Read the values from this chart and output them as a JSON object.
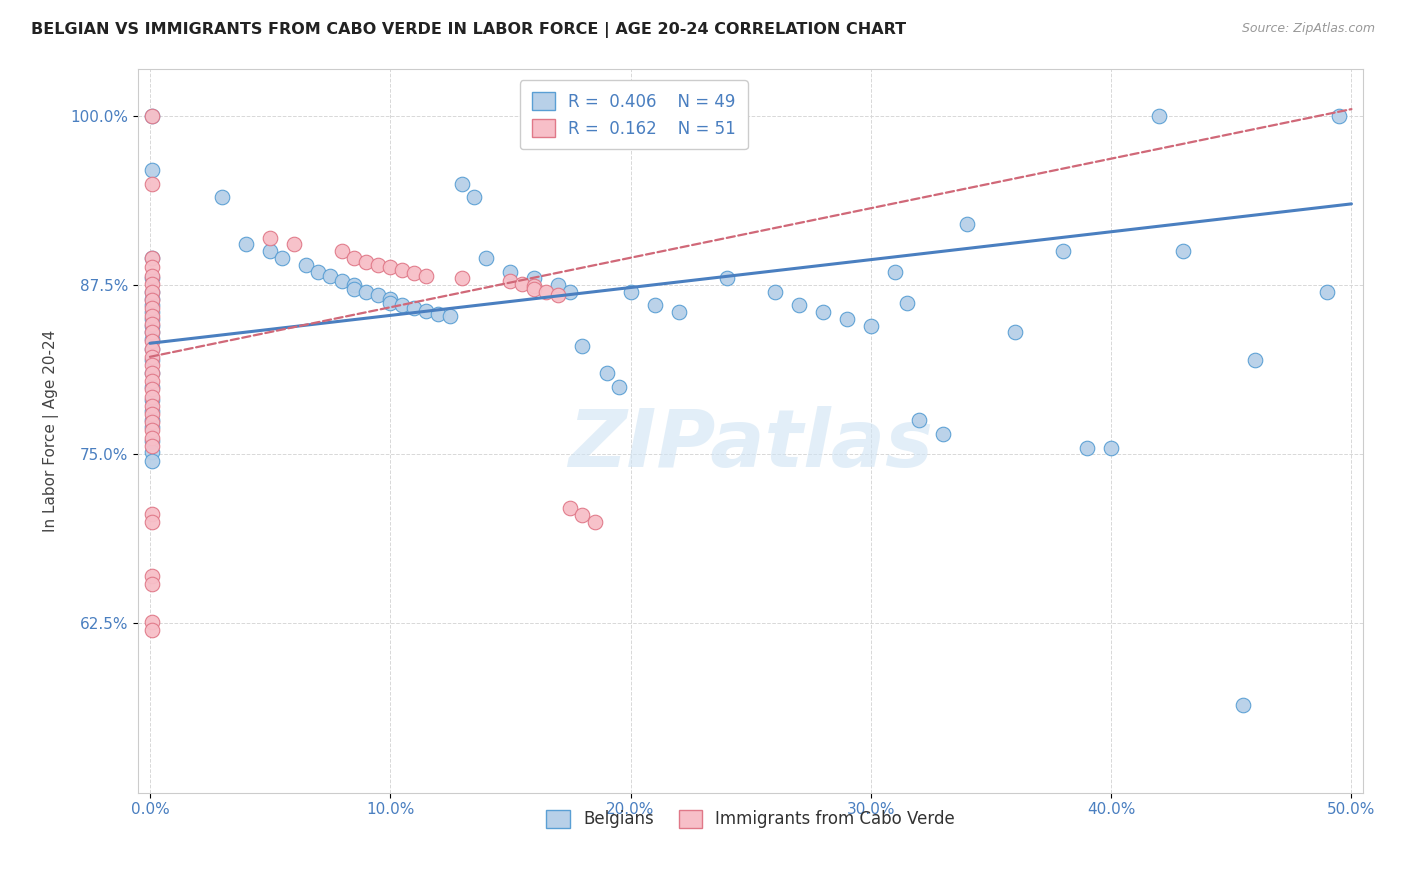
{
  "title": "BELGIAN VS IMMIGRANTS FROM CABO VERDE IN LABOR FORCE | AGE 20-24 CORRELATION CHART",
  "source": "Source: ZipAtlas.com",
  "ylabel": "In Labor Force | Age 20-24",
  "xlim": [
    -0.005,
    0.505
  ],
  "ylim": [
    0.5,
    1.035
  ],
  "yticks": [
    0.625,
    0.75,
    0.875,
    1.0
  ],
  "ytick_labels": [
    "62.5%",
    "75.0%",
    "87.5%",
    "100.0%"
  ],
  "xticks": [
    0.0,
    0.1,
    0.2,
    0.3,
    0.4,
    0.5
  ],
  "xtick_labels": [
    "0.0%",
    "10.0%",
    "20.0%",
    "30.0%",
    "40.0%",
    "50.0%"
  ],
  "blue_color": "#b8d0e8",
  "blue_edge": "#5a9fd4",
  "pink_color": "#f7bfc8",
  "pink_edge": "#e07888",
  "line_blue": "#4a7fc0",
  "line_pink": "#d06878",
  "watermark": "ZIPatlas",
  "blue_scatter": [
    [
      0.001,
      1.0
    ],
    [
      0.001,
      0.96
    ],
    [
      0.001,
      0.895
    ],
    [
      0.001,
      0.88
    ],
    [
      0.001,
      0.87
    ],
    [
      0.001,
      0.865
    ],
    [
      0.001,
      0.86
    ],
    [
      0.001,
      0.855
    ],
    [
      0.001,
      0.85
    ],
    [
      0.001,
      0.845
    ],
    [
      0.001,
      0.84
    ],
    [
      0.001,
      0.835
    ],
    [
      0.001,
      0.828
    ],
    [
      0.001,
      0.82
    ],
    [
      0.001,
      0.81
    ],
    [
      0.001,
      0.8
    ],
    [
      0.001,
      0.79
    ],
    [
      0.001,
      0.782
    ],
    [
      0.001,
      0.775
    ],
    [
      0.001,
      0.77
    ],
    [
      0.001,
      0.76
    ],
    [
      0.001,
      0.752
    ],
    [
      0.001,
      0.745
    ],
    [
      0.03,
      0.94
    ],
    [
      0.04,
      0.905
    ],
    [
      0.05,
      0.9
    ],
    [
      0.055,
      0.895
    ],
    [
      0.065,
      0.89
    ],
    [
      0.07,
      0.885
    ],
    [
      0.075,
      0.882
    ],
    [
      0.08,
      0.878
    ],
    [
      0.085,
      0.875
    ],
    [
      0.085,
      0.872
    ],
    [
      0.09,
      0.87
    ],
    [
      0.095,
      0.868
    ],
    [
      0.1,
      0.865
    ],
    [
      0.1,
      0.862
    ],
    [
      0.105,
      0.86
    ],
    [
      0.11,
      0.858
    ],
    [
      0.115,
      0.856
    ],
    [
      0.12,
      0.854
    ],
    [
      0.125,
      0.852
    ],
    [
      0.13,
      0.95
    ],
    [
      0.135,
      0.94
    ],
    [
      0.14,
      0.895
    ],
    [
      0.15,
      0.885
    ],
    [
      0.16,
      0.88
    ],
    [
      0.17,
      0.875
    ],
    [
      0.175,
      0.87
    ],
    [
      0.18,
      0.83
    ],
    [
      0.19,
      0.81
    ],
    [
      0.195,
      0.8
    ],
    [
      0.2,
      0.87
    ],
    [
      0.21,
      0.86
    ],
    [
      0.22,
      0.855
    ],
    [
      0.24,
      0.88
    ],
    [
      0.26,
      0.87
    ],
    [
      0.27,
      0.86
    ],
    [
      0.28,
      0.855
    ],
    [
      0.29,
      0.85
    ],
    [
      0.3,
      0.845
    ],
    [
      0.31,
      0.885
    ],
    [
      0.315,
      0.862
    ],
    [
      0.32,
      0.775
    ],
    [
      0.33,
      0.765
    ],
    [
      0.34,
      0.92
    ],
    [
      0.36,
      0.84
    ],
    [
      0.38,
      0.9
    ],
    [
      0.39,
      0.755
    ],
    [
      0.4,
      0.755
    ],
    [
      0.42,
      1.0
    ],
    [
      0.43,
      0.9
    ],
    [
      0.455,
      0.565
    ],
    [
      0.46,
      0.82
    ],
    [
      0.49,
      0.87
    ],
    [
      0.495,
      1.0
    ]
  ],
  "pink_scatter": [
    [
      0.001,
      1.0
    ],
    [
      0.001,
      0.95
    ],
    [
      0.001,
      0.895
    ],
    [
      0.001,
      0.888
    ],
    [
      0.001,
      0.882
    ],
    [
      0.001,
      0.876
    ],
    [
      0.001,
      0.87
    ],
    [
      0.001,
      0.864
    ],
    [
      0.001,
      0.858
    ],
    [
      0.001,
      0.852
    ],
    [
      0.001,
      0.846
    ],
    [
      0.001,
      0.84
    ],
    [
      0.001,
      0.834
    ],
    [
      0.001,
      0.828
    ],
    [
      0.001,
      0.822
    ],
    [
      0.001,
      0.816
    ],
    [
      0.001,
      0.81
    ],
    [
      0.001,
      0.804
    ],
    [
      0.001,
      0.798
    ],
    [
      0.001,
      0.792
    ],
    [
      0.001,
      0.786
    ],
    [
      0.001,
      0.78
    ],
    [
      0.001,
      0.774
    ],
    [
      0.001,
      0.768
    ],
    [
      0.001,
      0.762
    ],
    [
      0.001,
      0.756
    ],
    [
      0.001,
      0.706
    ],
    [
      0.001,
      0.7
    ],
    [
      0.001,
      0.66
    ],
    [
      0.001,
      0.654
    ],
    [
      0.001,
      0.626
    ],
    [
      0.001,
      0.62
    ],
    [
      0.05,
      0.91
    ],
    [
      0.06,
      0.905
    ],
    [
      0.08,
      0.9
    ],
    [
      0.085,
      0.895
    ],
    [
      0.09,
      0.892
    ],
    [
      0.095,
      0.89
    ],
    [
      0.1,
      0.888
    ],
    [
      0.105,
      0.886
    ],
    [
      0.11,
      0.884
    ],
    [
      0.115,
      0.882
    ],
    [
      0.13,
      0.88
    ],
    [
      0.15,
      0.878
    ],
    [
      0.155,
      0.876
    ],
    [
      0.16,
      0.874
    ],
    [
      0.16,
      0.872
    ],
    [
      0.165,
      0.87
    ],
    [
      0.17,
      0.868
    ],
    [
      0.175,
      0.71
    ],
    [
      0.18,
      0.705
    ],
    [
      0.185,
      0.7
    ]
  ],
  "blue_line": {
    "x0": 0.0,
    "x1": 0.5,
    "y0": 0.832,
    "y1": 0.935
  },
  "pink_line": {
    "x0": 0.0,
    "x1": 0.5,
    "y0": 0.822,
    "y1": 1.005
  }
}
